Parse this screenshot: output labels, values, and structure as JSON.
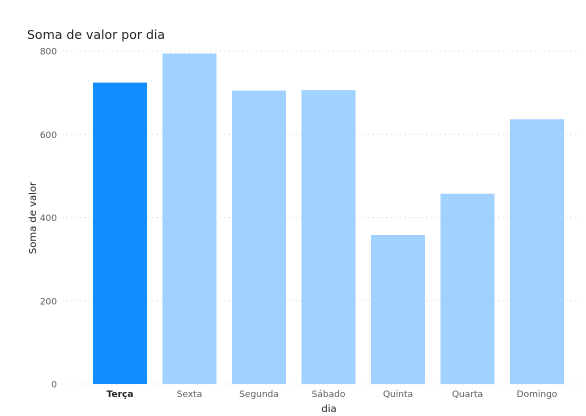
{
  "chart_data": {
    "type": "bar",
    "title": "Soma de valor por dia",
    "xlabel": "dia",
    "ylabel": "Soma de valor",
    "categories": [
      "Terça",
      "Sexta",
      "Segunda",
      "Sábado",
      "Quinta",
      "Quarta",
      "Domingo"
    ],
    "values": [
      724,
      794,
      705,
      706,
      358,
      457,
      636
    ],
    "selected_index": 0,
    "yticks": [
      0,
      200,
      400,
      600,
      800
    ],
    "ylim": [
      0,
      800
    ],
    "grid": true,
    "legend": "none",
    "colors": {
      "selected": "#118DFF",
      "other": "#A0D1FF",
      "grid": "#E1E1E1",
      "tick": "#605E5C"
    }
  }
}
